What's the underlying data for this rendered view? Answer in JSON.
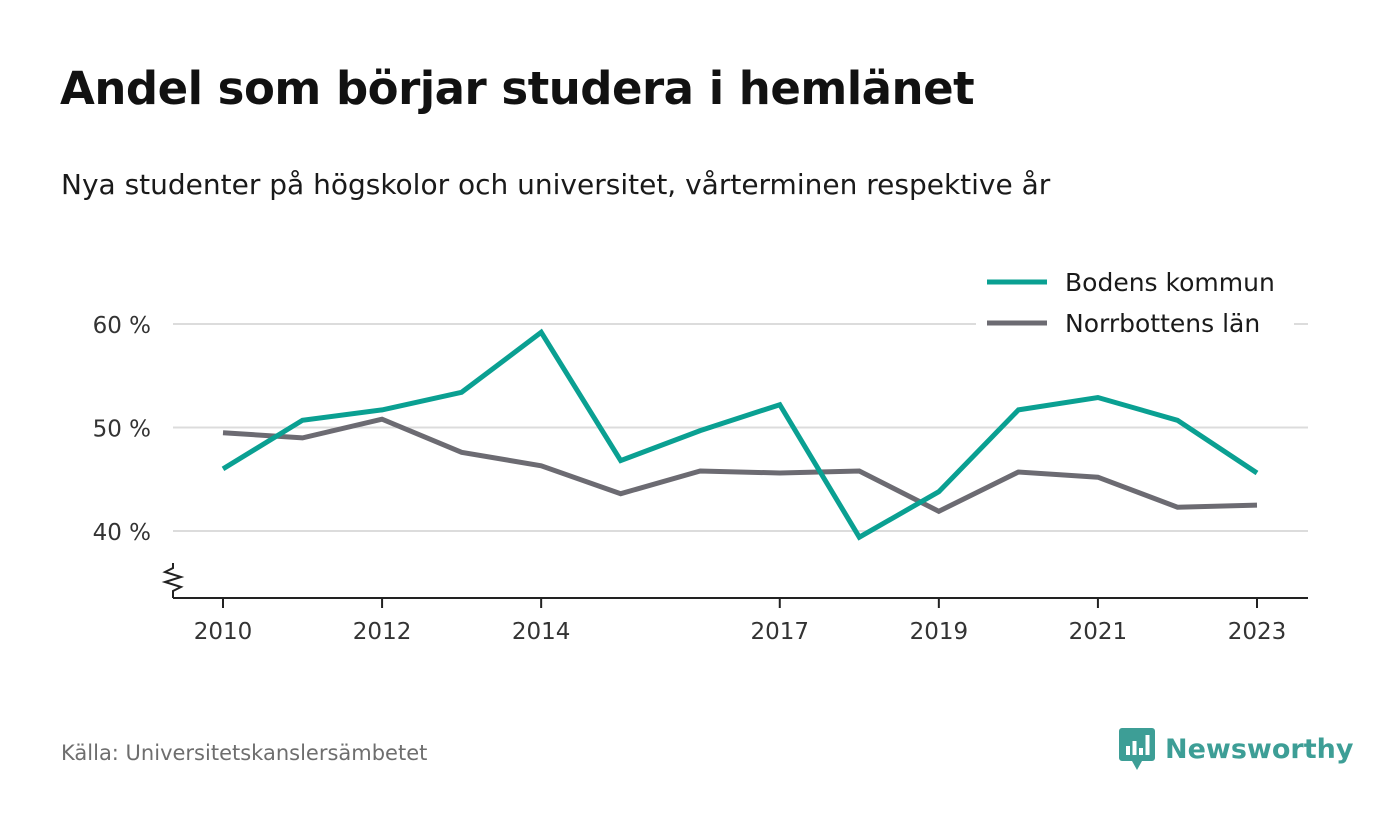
{
  "title": "Andel som börjar studera i hemlänet",
  "subtitle": "Nya studenter på högskolor och universitet, vårterminen respektive år",
  "source": "Källa: Universitetskanslersämbetet",
  "brand": {
    "name": "Newsworthy",
    "icon": "newsworthy-logo-icon",
    "color": "#3d9e96"
  },
  "chart_data": {
    "type": "line",
    "x": [
      2010,
      2011,
      2012,
      2013,
      2014,
      2015,
      2016,
      2017,
      2018,
      2019,
      2020,
      2021,
      2022,
      2023
    ],
    "x_ticks": [
      "2010",
      "2012",
      "2014",
      "2017",
      "2019",
      "2021",
      "2023"
    ],
    "y_ticks": [
      {
        "value": 40,
        "label": "40 %"
      },
      {
        "value": 50,
        "label": "50 %"
      },
      {
        "value": 60,
        "label": "60 %"
      }
    ],
    "ylim": [
      33.5,
      62
    ],
    "y_axis_break": true,
    "grid": true,
    "legend_position": "top-right",
    "series": [
      {
        "name": "Bodens kommun",
        "color": "#0aa092",
        "values": [
          46.0,
          50.7,
          51.7,
          53.4,
          59.2,
          46.8,
          49.7,
          52.2,
          39.4,
          43.8,
          51.7,
          52.9,
          50.7,
          45.6
        ]
      },
      {
        "name": "Norrbottens län",
        "color": "#6c6b72",
        "values": [
          49.5,
          49.0,
          50.8,
          47.6,
          46.3,
          43.6,
          45.8,
          45.6,
          45.8,
          41.9,
          45.7,
          45.2,
          42.3,
          42.5
        ]
      }
    ]
  }
}
